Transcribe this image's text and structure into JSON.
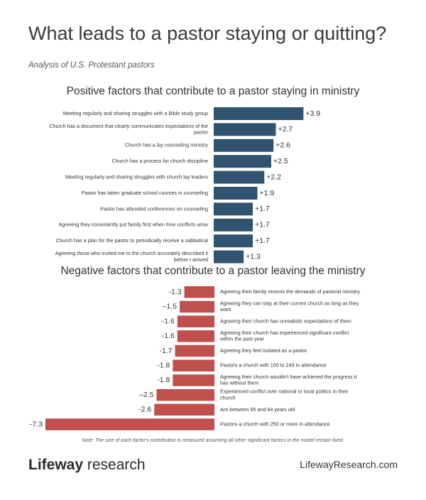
{
  "title": "What leads to a pastor staying or quitting?",
  "subtitle": "Analysis of U.S. Protestant pastors",
  "note": "Note: The size of each factor's contribution is measured assuming all other significant factors in the model remain fixed.",
  "logo": {
    "bold": "Lifeway",
    "light": " research"
  },
  "site": "LifewayResearch.com",
  "colors": {
    "positive": "#2f5371",
    "negative": "#c0504d"
  },
  "chart_data": [
    {
      "type": "bar",
      "orientation": "horizontal",
      "title": "Positive factors that contribute to a pastor staying in ministry",
      "categories": [
        "Meeting regularly and sharing struggles with a Bible study group",
        "Church has a document that clearly communicates expectations of the pastor",
        "Church has a lay counseling ministry",
        "Church has a process for church discipline",
        "Meeting regularly and sharing struggles with church lay leaders",
        "Pastor has taken graduate school courses in counseling",
        "Pastor has attended conferences on counseling",
        "Agreeing they consistently put family first when time conflicts arise",
        "Church has a plan for the pastor to periodically receive a sabbatical",
        "Agreeing those who invited me to the church accurately described it before I arrived"
      ],
      "values": [
        3.9,
        2.7,
        2.6,
        2.5,
        2.2,
        1.9,
        1.7,
        1.7,
        1.7,
        1.3
      ],
      "value_labels": [
        "+3.9",
        "+2.7",
        "+2.6",
        "+2.5",
        "+2.2",
        "+1.9",
        "+1.7",
        "+1.7",
        "+1.7",
        "+1.3"
      ]
    },
    {
      "type": "bar",
      "orientation": "horizontal",
      "title": "Negative factors that contribute to a pastor leaving the ministry",
      "categories": [
        "Agreeing their family resents the demands of pastoral ministry",
        "Agreeing they can stay at their current church as long as they want",
        "Agreeing their church has unrealistic expectations of them",
        "Agreeing their church has experienced significant conflict within the past year",
        "Agreeing they feel isolated as a pastor",
        "Pastors a church with 100 to 249 in attendance",
        "Agreeing their church wouldn't have achieved the progress it has without them",
        "Experienced conflict over national or local politics in their church",
        "Are between 55 and 64 years old",
        "Pastors a church with 250 or more in attendance"
      ],
      "values": [
        -1.3,
        -1.5,
        -1.6,
        -1.6,
        -1.7,
        -1.8,
        -1.8,
        -2.5,
        -2.6,
        -7.3
      ],
      "value_labels": [
        "-1.3",
        "–1.5",
        "-1.6",
        "-1.6",
        "-1.7",
        "-1.8",
        "-1.8",
        "–2.5",
        "-2.6",
        "-7.3"
      ]
    }
  ]
}
